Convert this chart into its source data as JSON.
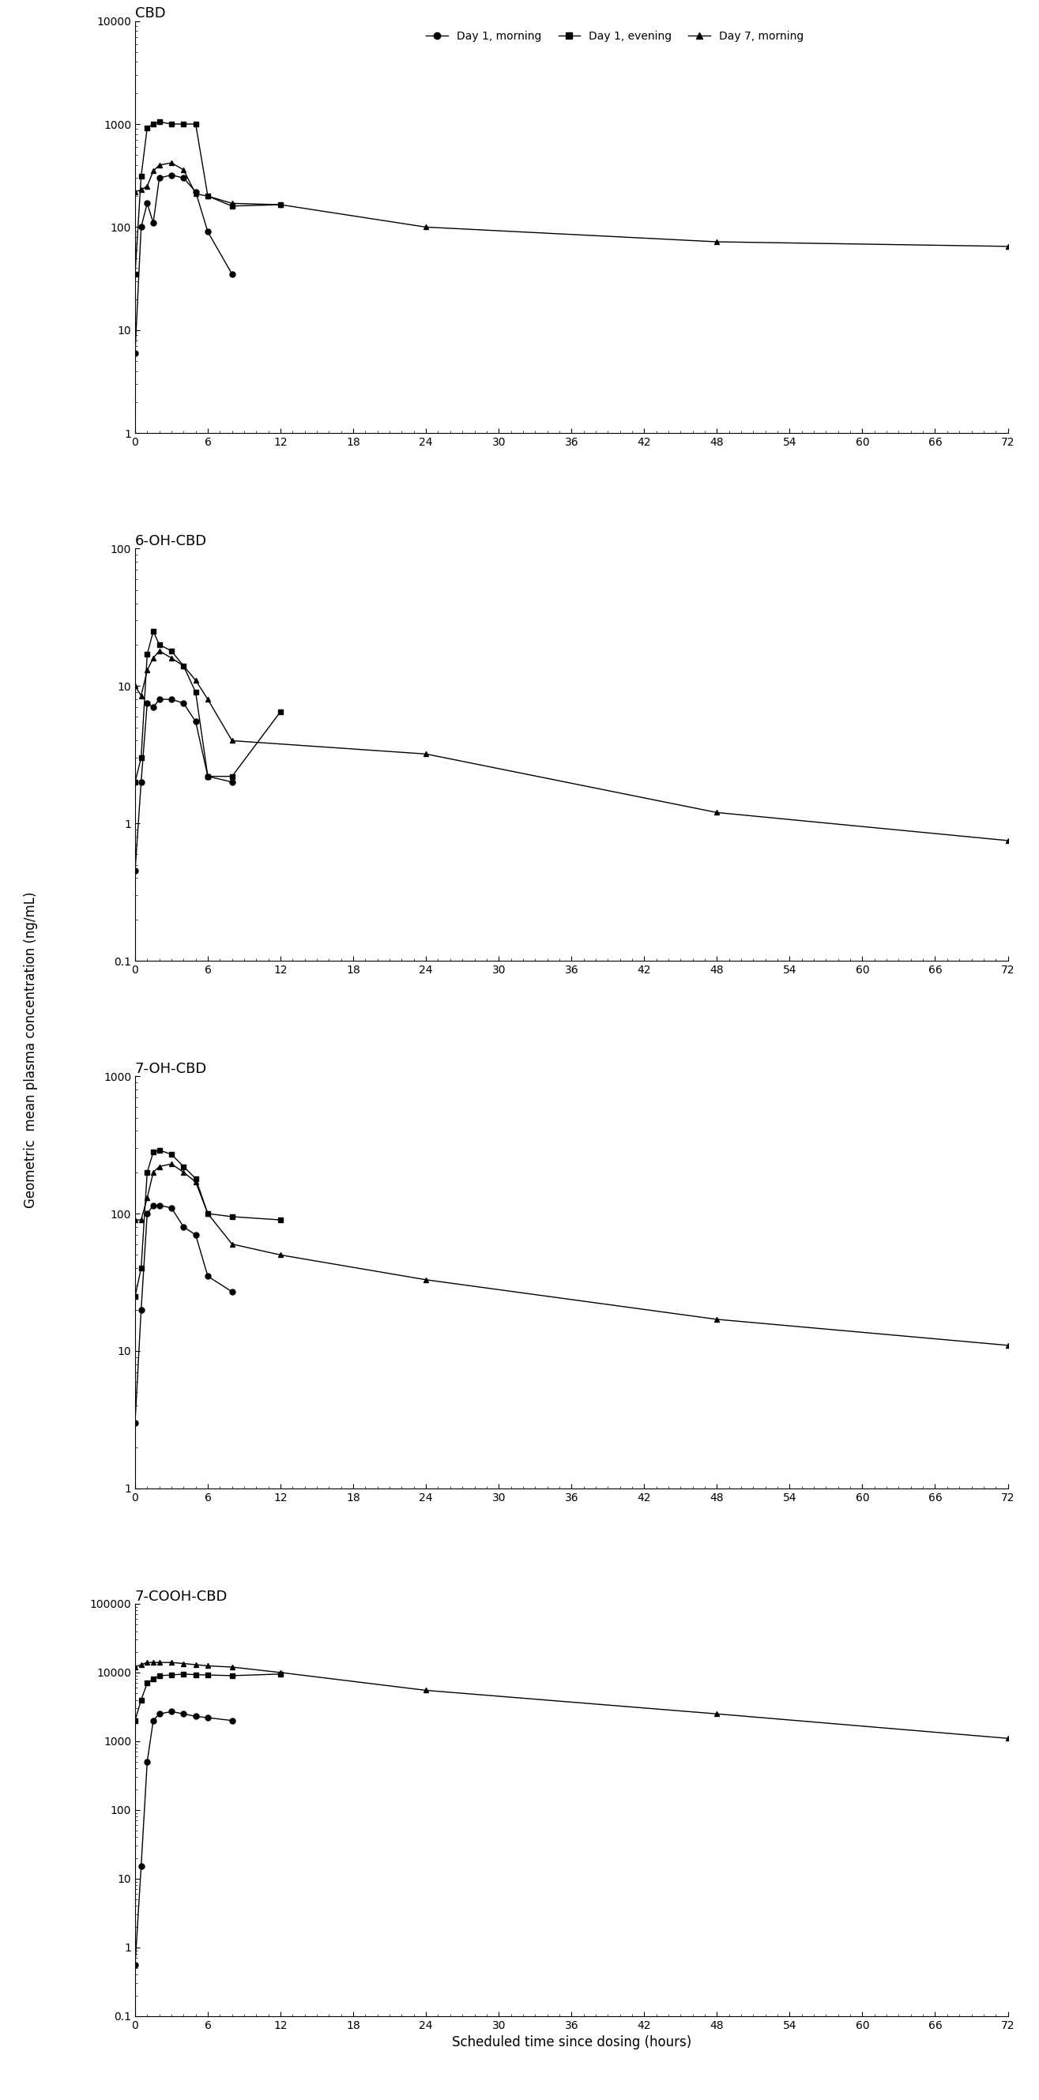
{
  "panels": [
    {
      "title": "CBD",
      "ylim": [
        1,
        10000
      ],
      "yticks": [
        1,
        10,
        100,
        1000,
        10000
      ],
      "series": [
        {
          "label": "Day 1, morning",
          "marker": "o",
          "x": [
            0,
            0.5,
            1,
            1.5,
            2,
            3,
            4,
            5,
            6,
            8,
            12
          ],
          "y": [
            6,
            100,
            170,
            110,
            300,
            320,
            300,
            220,
            90,
            35,
            null
          ]
        },
        {
          "label": "Day 1, evening",
          "marker": "s",
          "x": [
            0,
            0.5,
            1,
            1.5,
            2,
            3,
            4,
            5,
            6,
            8,
            12
          ],
          "y": [
            35,
            310,
            920,
            1000,
            1050,
            1000,
            1000,
            1000,
            200,
            160,
            165
          ]
        },
        {
          "label": "Day 7, morning",
          "marker": "^",
          "x": [
            0,
            0.5,
            1,
            1.5,
            2,
            3,
            4,
            5,
            6,
            8,
            12,
            24,
            48,
            72
          ],
          "y": [
            220,
            230,
            250,
            350,
            400,
            420,
            360,
            210,
            200,
            170,
            165,
            100,
            72,
            65
          ]
        }
      ]
    },
    {
      "title": "6-OH-CBD",
      "ylim": [
        0.1,
        100
      ],
      "yticks": [
        0.1,
        1,
        10,
        100
      ],
      "series": [
        {
          "label": "Day 1, morning",
          "marker": "o",
          "x": [
            0,
            0.5,
            1,
            1.5,
            2,
            3,
            4,
            5,
            6,
            8,
            12
          ],
          "y": [
            0.45,
            2.0,
            7.5,
            7.0,
            8.0,
            8.0,
            7.5,
            5.5,
            2.2,
            2.0,
            null
          ]
        },
        {
          "label": "Day 1, evening",
          "marker": "s",
          "x": [
            0,
            0.5,
            1,
            1.5,
            2,
            3,
            4,
            5,
            6,
            8,
            12
          ],
          "y": [
            2.0,
            3.0,
            17,
            25,
            20,
            18,
            14,
            9,
            2.2,
            2.2,
            6.5
          ]
        },
        {
          "label": "Day 7, morning",
          "marker": "^",
          "x": [
            0,
            0.5,
            1,
            1.5,
            2,
            3,
            4,
            5,
            6,
            8,
            12,
            24,
            48,
            72
          ],
          "y": [
            10,
            8.5,
            13,
            16,
            18,
            16,
            14,
            11,
            8,
            4.0,
            null,
            3.2,
            1.2,
            0.75
          ]
        }
      ]
    },
    {
      "title": "7-OH-CBD",
      "ylim": [
        1,
        1000
      ],
      "yticks": [
        1,
        10,
        100,
        1000
      ],
      "series": [
        {
          "label": "Day 1, morning",
          "marker": "o",
          "x": [
            0,
            0.5,
            1,
            1.5,
            2,
            3,
            4,
            5,
            6,
            8,
            12
          ],
          "y": [
            3.0,
            20,
            100,
            115,
            115,
            110,
            80,
            70,
            35,
            27,
            null
          ]
        },
        {
          "label": "Day 1, evening",
          "marker": "s",
          "x": [
            0,
            0.5,
            1,
            1.5,
            2,
            3,
            4,
            5,
            6,
            8,
            12
          ],
          "y": [
            25,
            40,
            200,
            280,
            290,
            270,
            220,
            180,
            100,
            95,
            90
          ]
        },
        {
          "label": "Day 7, morning",
          "marker": "^",
          "x": [
            0,
            0.5,
            1,
            1.5,
            2,
            3,
            4,
            5,
            6,
            8,
            12,
            24,
            48,
            72
          ],
          "y": [
            90,
            90,
            130,
            200,
            220,
            230,
            200,
            170,
            100,
            60,
            50,
            33,
            17,
            11
          ]
        }
      ]
    },
    {
      "title": "7-COOH-CBD",
      "ylim": [
        0.1,
        100000
      ],
      "yticks": [
        0.1,
        1,
        10,
        100,
        1000,
        10000,
        100000
      ],
      "series": [
        {
          "label": "Day 1, morning",
          "marker": "o",
          "x": [
            0,
            0.5,
            1,
            1.5,
            2,
            3,
            4,
            5,
            6,
            8,
            12
          ],
          "y": [
            0.55,
            15,
            500,
            2000,
            2500,
            2700,
            2500,
            2300,
            2200,
            2000,
            null
          ]
        },
        {
          "label": "Day 1, evening",
          "marker": "s",
          "x": [
            0,
            0.5,
            1,
            1.5,
            2,
            3,
            4,
            5,
            6,
            8,
            12
          ],
          "y": [
            2000,
            4000,
            7000,
            8000,
            9000,
            9200,
            9500,
            9300,
            9200,
            9000,
            9500
          ]
        },
        {
          "label": "Day 7, morning",
          "marker": "^",
          "x": [
            0,
            0.5,
            1,
            1.5,
            2,
            3,
            4,
            5,
            6,
            8,
            12,
            24,
            48,
            72
          ],
          "y": [
            12000,
            13000,
            14000,
            14000,
            14000,
            14000,
            13500,
            13000,
            12500,
            12000,
            10000,
            5500,
            2500,
            1100
          ]
        }
      ]
    }
  ],
  "xlabel": "Scheduled time since dosing (hours)",
  "ylabel": "Geometric  mean plasma concentration (ng/mL)",
  "xticks": [
    0,
    6,
    12,
    18,
    24,
    30,
    36,
    42,
    48,
    54,
    60,
    66,
    72
  ],
  "xlim": [
    0,
    72
  ],
  "line_color": "black",
  "marker_size": 5,
  "markersize_legend": 6
}
